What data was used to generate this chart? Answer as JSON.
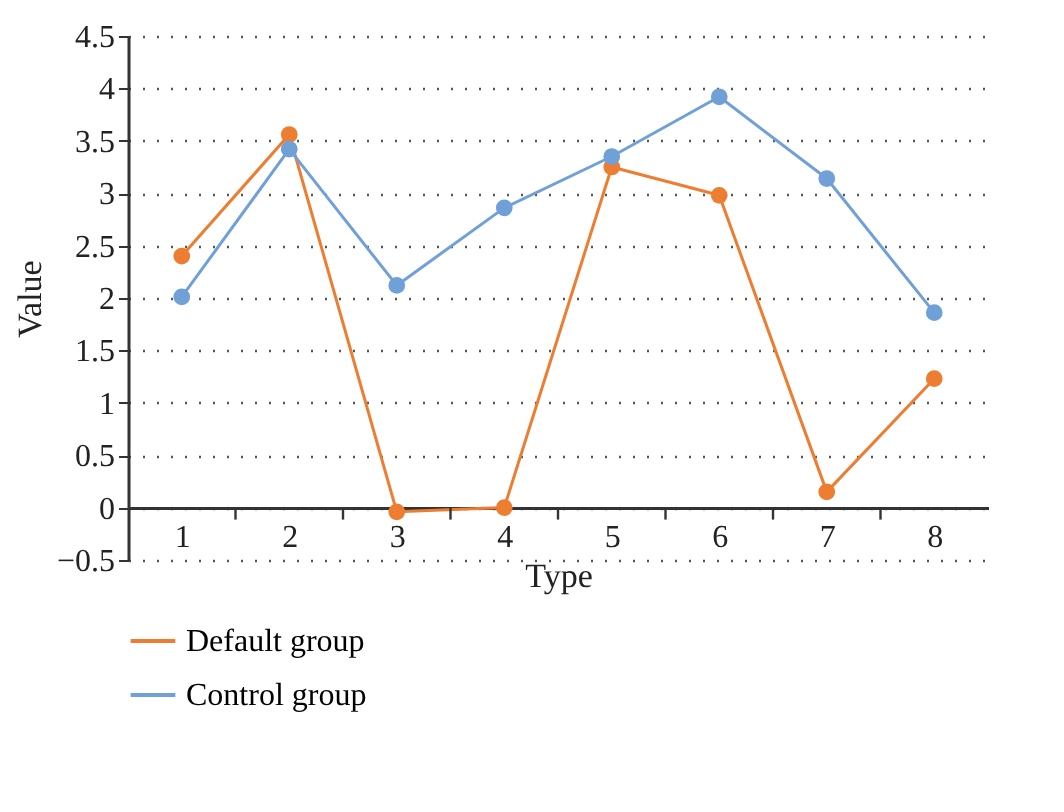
{
  "chart_data": {
    "type": "line",
    "xlabel": "Type",
    "ylabel": "Value",
    "categories": [
      "1",
      "2",
      "3",
      "4",
      "5",
      "6",
      "7",
      "8"
    ],
    "series": [
      {
        "name": "Default group",
        "color": "#ed7d31",
        "values": [
          2.4,
          3.56,
          -0.04,
          0.0,
          3.25,
          2.98,
          0.15,
          1.23
        ]
      },
      {
        "name": "Control group",
        "color": "#70a0d8",
        "values": [
          2.01,
          3.42,
          2.12,
          2.86,
          3.35,
          3.92,
          3.14,
          1.86
        ]
      }
    ],
    "ylim": [
      -0.5,
      4.5
    ],
    "yticks": [
      -0.5,
      0,
      0.5,
      1,
      1.5,
      2,
      2.5,
      3,
      3.5,
      4,
      4.5
    ],
    "grid": "y",
    "legend": "bottom",
    "marker": "circle",
    "line_style": "solid"
  }
}
